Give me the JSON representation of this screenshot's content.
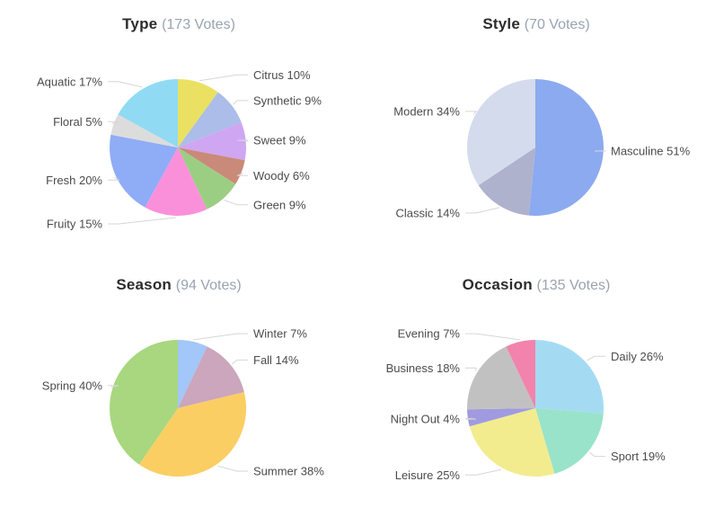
{
  "page": {
    "background": "#ffffff",
    "title_color": "#2c2c2c",
    "votes_color": "#99a3b1",
    "label_color": "#4b4b4b",
    "leader_line_color": "#d6d6d6"
  },
  "chart_data": [
    {
      "type": "pie",
      "title": "Type",
      "votes_text": "(173 Votes)",
      "votes": 173,
      "unit": "%",
      "label_format": "{label} {value}%",
      "legend_position": "none",
      "slices": [
        {
          "label": "Citrus",
          "value": 10,
          "color": "#EAE162"
        },
        {
          "label": "Synthetic",
          "value": 9,
          "color": "#ABBDE8"
        },
        {
          "label": "Sweet",
          "value": 9,
          "color": "#CFA6F2"
        },
        {
          "label": "Woody",
          "value": 6,
          "color": "#C98A79"
        },
        {
          "label": "Green",
          "value": 9,
          "color": "#9BCE83"
        },
        {
          "label": "Fruity",
          "value": 15,
          "color": "#FB90DA"
        },
        {
          "label": "Fresh",
          "value": 20,
          "color": "#8FACF6"
        },
        {
          "label": "Floral",
          "value": 5,
          "color": "#DCDCDC"
        },
        {
          "label": "Aquatic",
          "value": 17,
          "color": "#90DAF3"
        }
      ]
    },
    {
      "type": "pie",
      "title": "Style",
      "votes_text": "(70 Votes)",
      "votes": 70,
      "unit": "%",
      "label_format": "{label} {value}%",
      "legend_position": "none",
      "slices": [
        {
          "label": "Masculine",
          "value": 51,
          "color": "#8CAAEF"
        },
        {
          "label": "Classic",
          "value": 14,
          "color": "#AFB2CD"
        },
        {
          "label": "Modern",
          "value": 34,
          "color": "#D4DBED"
        }
      ]
    },
    {
      "type": "pie",
      "title": "Season",
      "votes_text": "(94 Votes)",
      "votes": 94,
      "unit": "%",
      "label_format": "{label} {value}%",
      "legend_position": "none",
      "slices": [
        {
          "label": "Winter",
          "value": 7,
          "color": "#A2C7F8"
        },
        {
          "label": "Fall",
          "value": 14,
          "color": "#CBA6BC"
        },
        {
          "label": "Summer",
          "value": 38,
          "color": "#FBCE63"
        },
        {
          "label": "Spring",
          "value": 40,
          "color": "#A8D77F"
        }
      ]
    },
    {
      "type": "pie",
      "title": "Occasion",
      "votes_text": "(135 Votes)",
      "votes": 135,
      "unit": "%",
      "label_format": "{label} {value}%",
      "legend_position": "none",
      "slices": [
        {
          "label": "Daily",
          "value": 26,
          "color": "#A5DBF2"
        },
        {
          "label": "Sport",
          "value": 19,
          "color": "#98E3C9"
        },
        {
          "label": "Leisure",
          "value": 25,
          "color": "#F2EC8F"
        },
        {
          "label": "Night Out",
          "value": 4,
          "color": "#A09BE0"
        },
        {
          "label": "Business",
          "value": 18,
          "color": "#C2C1C2"
        },
        {
          "label": "Evening",
          "value": 7,
          "color": "#F283AC"
        }
      ]
    }
  ]
}
